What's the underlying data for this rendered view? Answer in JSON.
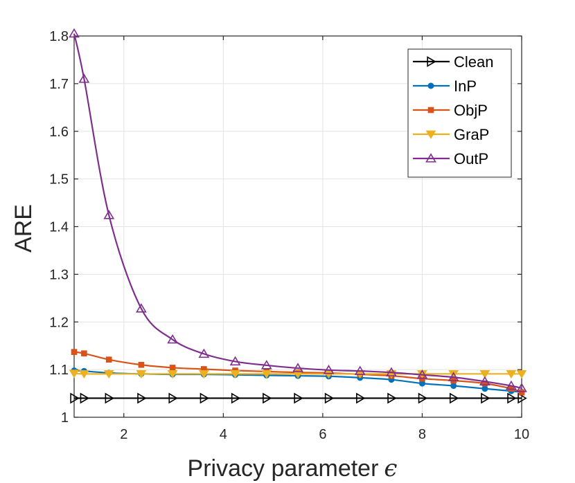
{
  "chart_data": {
    "type": "line",
    "title": "",
    "xlabel": "Privacy parameter",
    "xlabel_symbol": "ϵ",
    "ylabel": "ARE",
    "xlim": [
      1,
      10
    ],
    "ylim": [
      1,
      1.8
    ],
    "xticks": [
      2,
      4,
      6,
      8,
      10
    ],
    "yticks": [
      1,
      1.1,
      1.2,
      1.3,
      1.4,
      1.5,
      1.6,
      1.7,
      1.8
    ],
    "ytick_labels": [
      "1",
      "1.1",
      "1.2",
      "1.3",
      "1.4",
      "1.5",
      "1.6",
      "1.7",
      "1.8"
    ],
    "grid": true,
    "legend_position": "top-right",
    "series": [
      {
        "name": "Clean",
        "color": "#000000",
        "marker": "triangle-right",
        "x": [
          1.0,
          1.2,
          1.7,
          2.35,
          2.98,
          3.61,
          4.24,
          4.87,
          5.5,
          6.12,
          6.75,
          7.38,
          8.0,
          8.63,
          9.26,
          9.79,
          10.0
        ],
        "y": [
          1.04,
          1.04,
          1.04,
          1.04,
          1.04,
          1.04,
          1.04,
          1.04,
          1.04,
          1.04,
          1.04,
          1.04,
          1.04,
          1.04,
          1.04,
          1.04,
          1.04
        ]
      },
      {
        "name": "InP",
        "color": "#0072BD",
        "marker": "circle",
        "x": [
          1.0,
          1.2,
          1.7,
          2.35,
          2.98,
          3.61,
          4.24,
          4.87,
          5.5,
          6.12,
          6.75,
          7.38,
          8.0,
          8.63,
          9.26,
          9.79,
          10.0
        ],
        "y": [
          1.098,
          1.097,
          1.093,
          1.091,
          1.09,
          1.09,
          1.089,
          1.088,
          1.087,
          1.086,
          1.083,
          1.079,
          1.071,
          1.066,
          1.06,
          1.055,
          1.053
        ]
      },
      {
        "name": "ObjP",
        "color": "#D95319",
        "marker": "square",
        "x": [
          1.0,
          1.2,
          1.7,
          2.35,
          2.98,
          3.61,
          4.24,
          4.87,
          5.5,
          6.12,
          6.75,
          7.38,
          8.0,
          8.63,
          9.26,
          9.79,
          10.0
        ],
        "y": [
          1.137,
          1.134,
          1.121,
          1.11,
          1.104,
          1.101,
          1.098,
          1.096,
          1.094,
          1.093,
          1.09,
          1.087,
          1.081,
          1.077,
          1.071,
          1.06,
          1.052
        ]
      },
      {
        "name": "GraP",
        "color": "#EDB120",
        "marker": "triangle-down",
        "x": [
          1.0,
          1.2,
          1.7,
          2.35,
          2.98,
          3.61,
          4.24,
          4.87,
          5.5,
          6.12,
          6.75,
          7.38,
          8.0,
          8.63,
          9.26,
          9.79,
          10.0
        ],
        "y": [
          1.092,
          1.091,
          1.091,
          1.091,
          1.091,
          1.091,
          1.091,
          1.091,
          1.091,
          1.091,
          1.091,
          1.091,
          1.091,
          1.091,
          1.091,
          1.091,
          1.091
        ]
      },
      {
        "name": "OutP",
        "color": "#7E2F8E",
        "marker": "triangle-up",
        "x": [
          1.0,
          1.2,
          1.7,
          2.35,
          2.98,
          3.61,
          4.24,
          4.87,
          5.5,
          6.12,
          6.75,
          7.38,
          8.0,
          8.63,
          9.26,
          9.79,
          10.0
        ],
        "y": [
          1.805,
          1.71,
          1.424,
          1.228,
          1.163,
          1.133,
          1.117,
          1.109,
          1.103,
          1.099,
          1.097,
          1.094,
          1.089,
          1.084,
          1.075,
          1.066,
          1.061
        ]
      }
    ]
  }
}
